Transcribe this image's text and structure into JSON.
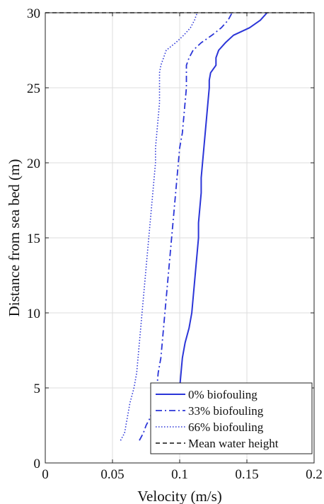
{
  "chart_data": {
    "type": "line",
    "title": "",
    "xlabel": "Velocity (m/s)",
    "ylabel": "Distance from sea bed (m)",
    "xlim": [
      0,
      0.2
    ],
    "ylim": [
      0,
      30
    ],
    "xticks": [
      0,
      0.05,
      0.1,
      0.15,
      0.2
    ],
    "xtick_labels": [
      "0",
      "0.05",
      "0.1",
      "0.15",
      "0.2"
    ],
    "yticks": [
      0,
      5,
      10,
      15,
      20,
      25,
      30
    ],
    "ytick_labels": [
      "0",
      "5",
      "10",
      "15",
      "20",
      "25",
      "30"
    ],
    "grid": true,
    "legend_position": "bottom-right",
    "series": [
      {
        "name": "0% biofouling",
        "color": "#2b35d8",
        "style": "solid",
        "points": [
          [
            0.099,
            1.5
          ],
          [
            0.099,
            3
          ],
          [
            0.099,
            4
          ],
          [
            0.1,
            5
          ],
          [
            0.101,
            6
          ],
          [
            0.102,
            7
          ],
          [
            0.104,
            8
          ],
          [
            0.107,
            9
          ],
          [
            0.109,
            10
          ],
          [
            0.11,
            11
          ],
          [
            0.111,
            12
          ],
          [
            0.112,
            13
          ],
          [
            0.113,
            14
          ],
          [
            0.114,
            15
          ],
          [
            0.114,
            16
          ],
          [
            0.115,
            17
          ],
          [
            0.116,
            18
          ],
          [
            0.116,
            19
          ],
          [
            0.117,
            20
          ],
          [
            0.118,
            21
          ],
          [
            0.119,
            22
          ],
          [
            0.12,
            23
          ],
          [
            0.121,
            24
          ],
          [
            0.122,
            25
          ],
          [
            0.122,
            25.5
          ],
          [
            0.123,
            26
          ],
          [
            0.127,
            26.5
          ],
          [
            0.127,
            27
          ],
          [
            0.129,
            27.5
          ],
          [
            0.134,
            28
          ],
          [
            0.14,
            28.5
          ],
          [
            0.152,
            29
          ],
          [
            0.16,
            29.5
          ],
          [
            0.165,
            30
          ]
        ]
      },
      {
        "name": "33% biofouling",
        "color": "#2b35d8",
        "style": "dashdot",
        "points": [
          [
            0.07,
            1.5
          ],
          [
            0.073,
            2
          ],
          [
            0.075,
            2.5
          ],
          [
            0.078,
            3
          ],
          [
            0.081,
            4
          ],
          [
            0.083,
            5
          ],
          [
            0.084,
            6
          ],
          [
            0.086,
            7
          ],
          [
            0.087,
            8
          ],
          [
            0.088,
            9
          ],
          [
            0.089,
            10
          ],
          [
            0.09,
            11
          ],
          [
            0.091,
            12
          ],
          [
            0.092,
            13
          ],
          [
            0.093,
            14
          ],
          [
            0.094,
            15
          ],
          [
            0.095,
            16
          ],
          [
            0.096,
            17
          ],
          [
            0.097,
            18
          ],
          [
            0.098,
            19
          ],
          [
            0.099,
            20
          ],
          [
            0.1,
            21
          ],
          [
            0.102,
            22
          ],
          [
            0.103,
            23
          ],
          [
            0.104,
            24
          ],
          [
            0.105,
            25
          ],
          [
            0.105,
            26
          ],
          [
            0.105,
            26.5
          ],
          [
            0.107,
            27
          ],
          [
            0.11,
            27.5
          ],
          [
            0.116,
            28
          ],
          [
            0.124,
            28.5
          ],
          [
            0.131,
            29
          ],
          [
            0.136,
            29.5
          ],
          [
            0.139,
            30
          ]
        ]
      },
      {
        "name": "66% biofouling",
        "color": "#2b35d8",
        "style": "dotted",
        "points": [
          [
            0.056,
            1.5
          ],
          [
            0.059,
            2
          ],
          [
            0.061,
            3
          ],
          [
            0.063,
            4
          ],
          [
            0.066,
            5
          ],
          [
            0.068,
            6
          ],
          [
            0.069,
            7
          ],
          [
            0.07,
            8
          ],
          [
            0.071,
            9
          ],
          [
            0.072,
            10
          ],
          [
            0.073,
            11
          ],
          [
            0.074,
            12
          ],
          [
            0.075,
            13
          ],
          [
            0.076,
            14
          ],
          [
            0.077,
            15
          ],
          [
            0.078,
            16
          ],
          [
            0.079,
            17
          ],
          [
            0.08,
            18
          ],
          [
            0.081,
            19
          ],
          [
            0.082,
            20
          ],
          [
            0.082,
            21
          ],
          [
            0.083,
            22
          ],
          [
            0.084,
            23
          ],
          [
            0.085,
            24
          ],
          [
            0.085,
            25
          ],
          [
            0.085,
            26
          ],
          [
            0.086,
            26.5
          ],
          [
            0.088,
            27
          ],
          [
            0.09,
            27.5
          ],
          [
            0.097,
            28
          ],
          [
            0.103,
            28.5
          ],
          [
            0.108,
            29
          ],
          [
            0.111,
            29.5
          ],
          [
            0.113,
            30
          ]
        ]
      },
      {
        "name": "Mean water height",
        "color": "#111111",
        "style": "dashed",
        "points": [
          [
            0,
            30
          ],
          [
            0.2,
            30
          ]
        ]
      }
    ]
  }
}
